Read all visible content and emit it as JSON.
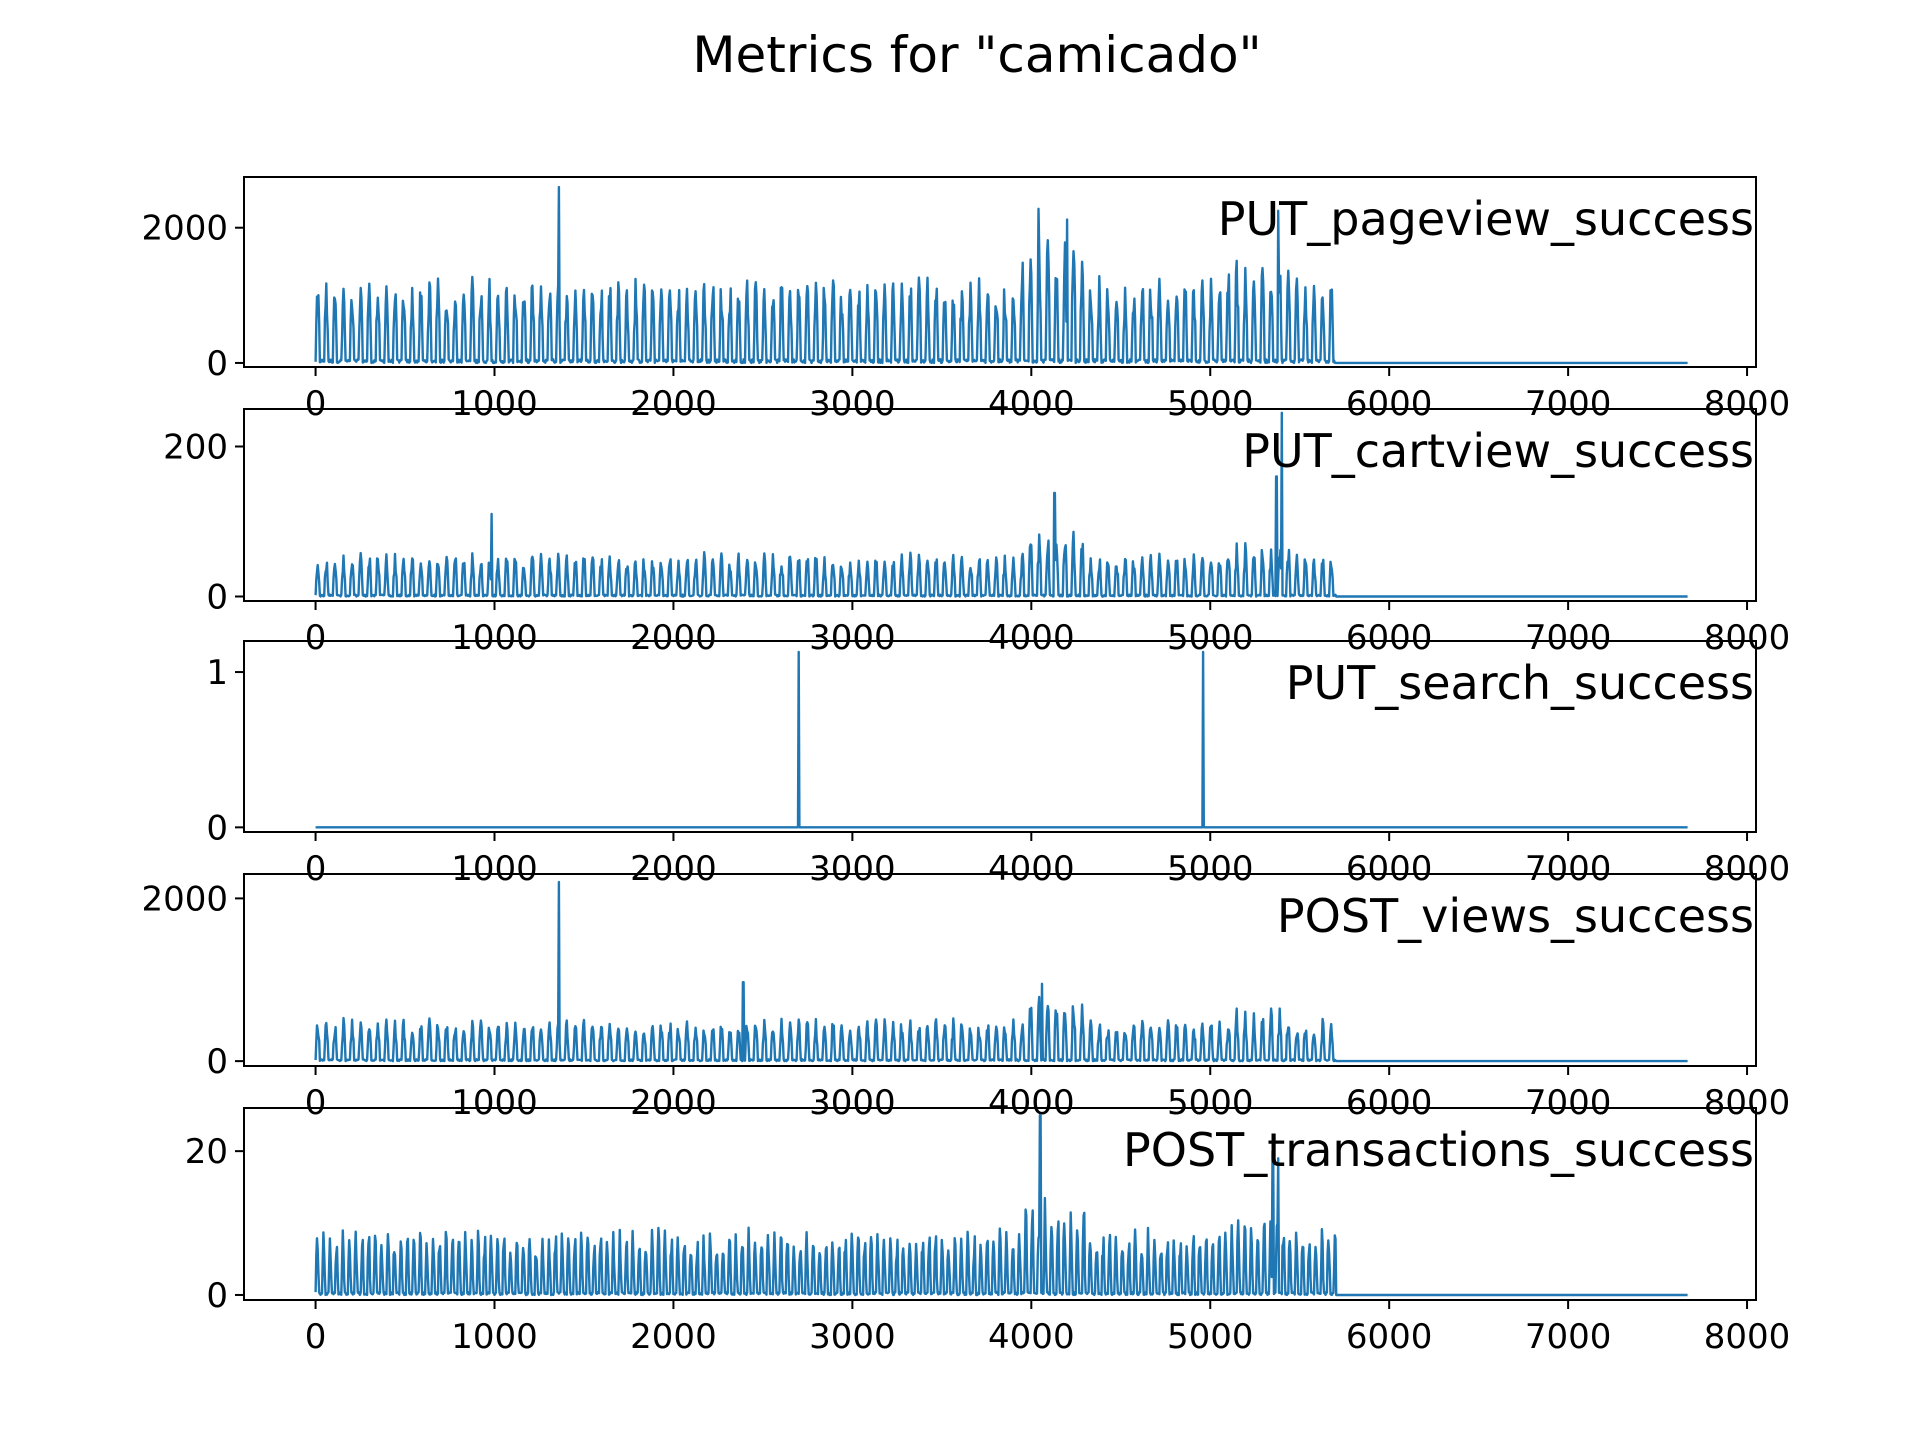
{
  "chart_data": {
    "type": "line",
    "title": "Metrics for \"camicado\"",
    "color": "#1f77b4",
    "x_ticks": [
      0,
      1000,
      2000,
      3000,
      4000,
      5000,
      6000,
      7000,
      8000
    ],
    "x_range": [
      -400,
      8050
    ],
    "x_data_extent": [
      0,
      7670
    ],
    "active_until_x": 5700,
    "panels": [
      {
        "name": "PUT_pageview_success",
        "y_ticks": [
          0,
          2000
        ],
        "y_range": [
          -60,
          2750
        ],
        "typical_peak": 1100,
        "period": 48,
        "spikes": [
          {
            "x": 1360,
            "y": 2600
          },
          {
            "x": 4040,
            "y": 2280
          },
          {
            "x": 4200,
            "y": 2120
          },
          {
            "x": 5380,
            "y": 2250
          }
        ]
      },
      {
        "name": "PUT_cartview_success",
        "y_ticks": [
          0,
          200
        ],
        "y_range": [
          -6,
          250
        ],
        "typical_peak": 50,
        "period": 48,
        "spikes": [
          {
            "x": 985,
            "y": 110
          },
          {
            "x": 4130,
            "y": 138
          },
          {
            "x": 5370,
            "y": 160
          },
          {
            "x": 5400,
            "y": 245
          }
        ]
      },
      {
        "name": "PUT_search_success",
        "y_ticks": [
          0,
          1
        ],
        "y_range": [
          -0.03,
          1.2
        ],
        "typical_peak": 0,
        "period": 48,
        "spikes": [
          {
            "x": 2700,
            "y": 1.13
          },
          {
            "x": 4960,
            "y": 1.13
          }
        ]
      },
      {
        "name": "POST_views_success",
        "y_ticks": [
          0,
          2000
        ],
        "y_range": [
          -60,
          2300
        ],
        "typical_peak": 450,
        "period": 48,
        "spikes": [
          {
            "x": 1360,
            "y": 2200
          },
          {
            "x": 2390,
            "y": 970
          },
          {
            "x": 4060,
            "y": 950
          }
        ]
      },
      {
        "name": "POST_transactions_success",
        "y_ticks": [
          0,
          20
        ],
        "y_range": [
          -0.7,
          26
        ],
        "typical_peak": 8,
        "period": 36,
        "spikes": [
          {
            "x": 4050,
            "y": 25
          },
          {
            "x": 5350,
            "y": 20
          },
          {
            "x": 5380,
            "y": 19
          }
        ]
      }
    ]
  }
}
